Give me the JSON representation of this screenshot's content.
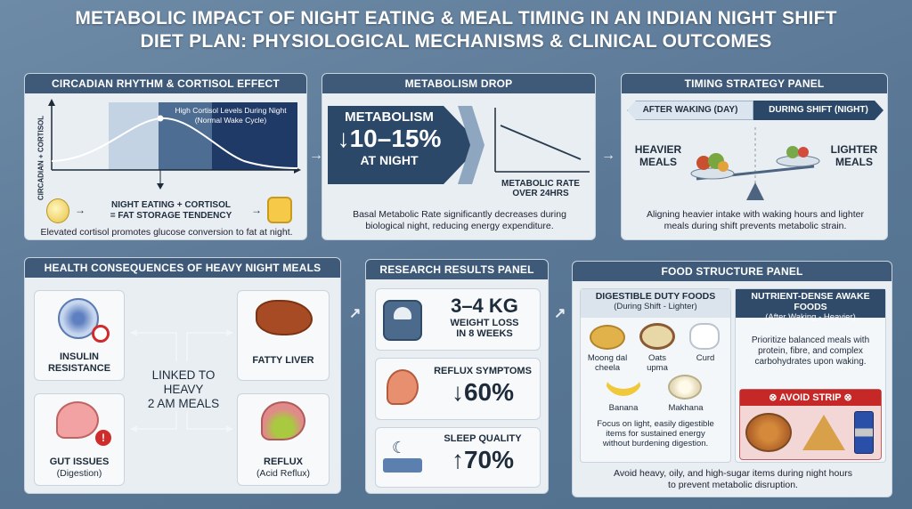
{
  "title_line1": "METABOLIC IMPACT OF NIGHT EATING & MEAL TIMING IN AN INDIAN NIGHT SHIFT",
  "title_line2": "DIET PLAN: PHYSIOLOGICAL MECHANISMS & CLINICAL OUTCOMES",
  "circadian": {
    "head": "CIRCADIAN RHYTHM & CORTISOL EFFECT",
    "axis": "CIRCADIAN + CORTISOL",
    "note1": "High Cortisol Levels During Night",
    "note2": "(Normal Wake Cycle)",
    "eq1": "NIGHT EATING + CORTISOL",
    "eq2": "= FAT STORAGE TENDENCY",
    "caption": "Elevated cortisol promotes glucose conversion to fat at night."
  },
  "metabolism": {
    "head": "METABOLISM DROP",
    "big1": "METABOLISM",
    "big2": "↓10–15%",
    "big3": "AT NIGHT",
    "rate1": "METABOLIC RATE",
    "rate2": "OVER 24HRS",
    "caption1": "Basal Metabolic Rate significantly decreases during",
    "caption2": "biological night, reducing energy expenditure."
  },
  "timing": {
    "head": "TIMING STRATEGY PANEL",
    "left": "AFTER WAKING (DAY)",
    "right": "DURING SHIFT (NIGHT)",
    "heavy1": "HEAVIER",
    "heavy2": "MEALS",
    "light1": "LIGHTER",
    "light2": "MEALS",
    "caption1": "Aligning heavier intake with waking hours and lighter",
    "caption2": "meals during shift prevents metabolic strain."
  },
  "health": {
    "head": "HEALTH CONSEQUENCES OF HEAVY NIGHT MEALS",
    "insulin1": "INSULIN",
    "insulin2": "RESISTANCE",
    "liver": "FATTY LIVER",
    "gut1": "GUT ISSUES",
    "gut2": "(Digestion)",
    "reflux1": "REFLUX",
    "reflux2": "(Acid Reflux)",
    "center1": "LINKED TO",
    "center2": "HEAVY",
    "center3": "2 AM MEALS"
  },
  "research": {
    "head": "RESEARCH RESULTS PANEL",
    "w1": "3–4 KG",
    "w2": "WEIGHT LOSS",
    "w3": "IN 8 WEEKS",
    "r1": "REFLUX SYMPTOMS",
    "r2": "↓60%",
    "s1": "SLEEP QUALITY",
    "s2": "↑70%"
  },
  "food": {
    "head": "FOOD STRUCTURE PANEL",
    "left_head": "DIGESTIBLE DUTY FOODS",
    "left_sub": "(During Shift - Lighter)",
    "right_head": "NUTRIENT-DENSE AWAKE FOODS",
    "right_sub": "(After Waking - Heavier)",
    "i1a": "Moong dal",
    "i1b": "cheela",
    "i2a": "Oats",
    "i2b": "upma",
    "i3": "Curd",
    "i4": "Banana",
    "i5": "Makhana",
    "left_caption1": "Focus on light, easily digestible",
    "left_caption2": "items for sustained energy",
    "left_caption3": "without burdening digestion.",
    "right_caption1": "Prioritize balanced meals with",
    "right_caption2": "protein, fibre, and complex",
    "right_caption3": "carbohydrates upon waking.",
    "avoid": "AVOID STRIP",
    "bottom1": "Avoid heavy, oily, and high-sugar items during night hours",
    "bottom2": "to prevent metabolic disruption."
  }
}
